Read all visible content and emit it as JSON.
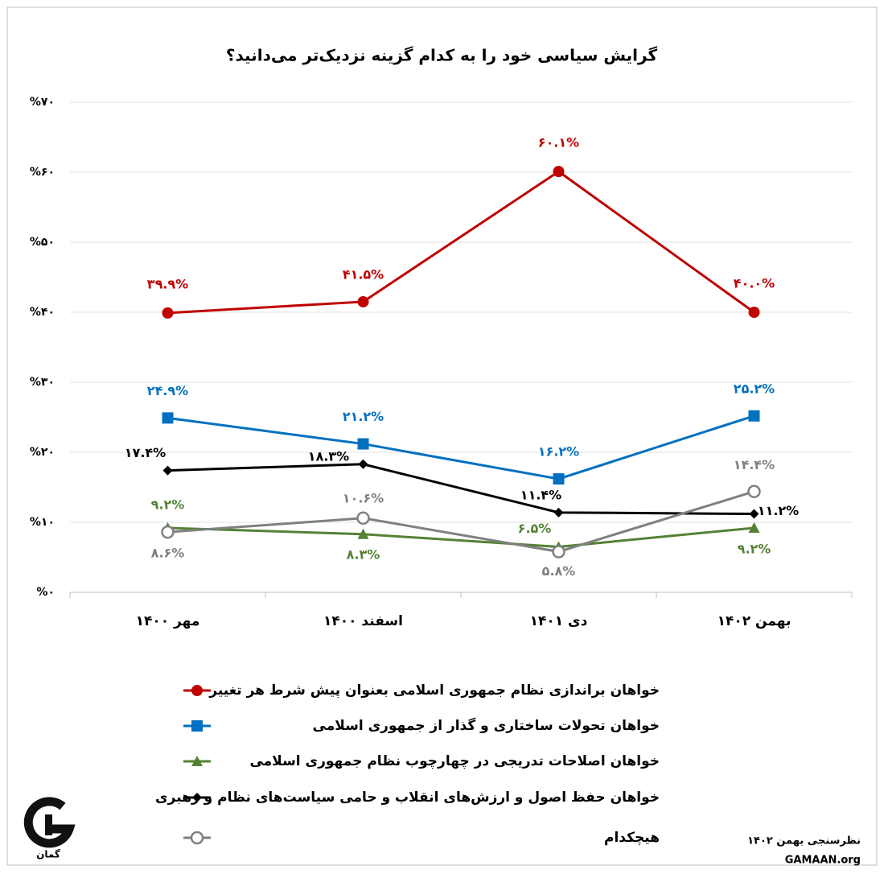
{
  "chart_data": {
    "type": "line",
    "title": "گرایش سیاسی خود را به کدام گزینه نزدیک‌تر می‌دانید؟",
    "categories": [
      "مهر ۱۴۰۰",
      "اسفند ۱۴۰۰",
      "دی ۱۴۰۱",
      "بهمن ۱۴۰۲"
    ],
    "ylim": [
      0,
      70
    ],
    "yticks": [
      {
        "value": 0,
        "label": "%۰"
      },
      {
        "value": 10,
        "label": "%۱۰"
      },
      {
        "value": 20,
        "label": "%۲۰"
      },
      {
        "value": 30,
        "label": "%۳۰"
      },
      {
        "value": 40,
        "label": "%۴۰"
      },
      {
        "value": 50,
        "label": "%۵۰"
      },
      {
        "value": 60,
        "label": "%۶۰"
      },
      {
        "value": 70,
        "label": "%۷۰"
      }
    ],
    "grid": true,
    "series": [
      {
        "name": "خواهان براندازی نظام جمهوری اسلامی بعنوان پیش شرط هر تغییر",
        "color": "#c00000",
        "marker": "circle",
        "values": [
          39.9,
          41.5,
          60.1,
          40.0
        ],
        "value_labels": [
          "۳۹.۹%",
          "۴۱.۵%",
          "۶۰.۱%",
          "۴۰.۰%"
        ]
      },
      {
        "name": "خواهان تحولات ساختاری و گذار از جمهوری اسلامی",
        "color": "#0070c0",
        "marker": "square",
        "values": [
          24.9,
          21.2,
          16.2,
          25.2
        ],
        "value_labels": [
          "۲۴.۹%",
          "۲۱.۲%",
          "۱۶.۲%",
          "۲۵.۲%"
        ]
      },
      {
        "name": "خواهان اصلاحات تدریجی در چهارچوب نظام جمهوری اسلامی",
        "color": "#548235",
        "marker": "triangle",
        "values": [
          9.2,
          8.3,
          6.5,
          9.2
        ],
        "value_labels": [
          "۹.۲%",
          "۸.۳%",
          "۶.۵%",
          "۹.۲%"
        ]
      },
      {
        "name": "خواهان حفظ اصول و ارزش‌های انقلاب و حامی سیاست‌های نظام و رهبری",
        "color": "#000000",
        "marker": "diamond",
        "values": [
          17.4,
          18.3,
          11.4,
          11.2
        ],
        "value_labels": [
          "۱۷.۴%",
          "۱۸.۳%",
          "۱۱.۴%",
          "۱۱.۲%"
        ]
      },
      {
        "name": "هیچکدام",
        "color": "#808080",
        "marker": "open-circle",
        "values": [
          8.6,
          10.6,
          5.8,
          14.4
        ],
        "value_labels": [
          "۸.۶%",
          "۱۰.۶%",
          "۵.۸%",
          "۱۴.۴%"
        ]
      }
    ],
    "source": "نظرسنجی بهمن ۱۴۰۲",
    "website": "GAMAAN.org",
    "logo_text": "گمان"
  }
}
